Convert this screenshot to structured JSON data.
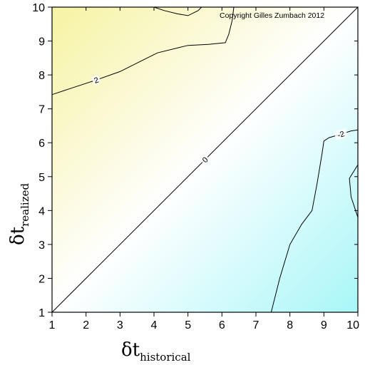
{
  "chart_data": {
    "type": "heatmap",
    "subtype": "contour",
    "copyright": "Copyright Gilles Zumbach 2012",
    "xlabel": {
      "symbol": "δt",
      "subscript": "historical"
    },
    "ylabel": {
      "symbol": "δt",
      "subscript": "realized"
    },
    "xlim": [
      1,
      10
    ],
    "ylim": [
      1,
      10
    ],
    "x_ticks": [
      "1",
      "2",
      "3",
      "4",
      "5",
      "6",
      "7",
      "8",
      "9",
      "10"
    ],
    "y_ticks": [
      "1",
      "2",
      "3",
      "4",
      "5",
      "6",
      "7",
      "8",
      "9",
      "10"
    ],
    "colors": {
      "positive": "#f6f3a2",
      "zero": "#ffffff",
      "negative": "#a8f6f8",
      "line": "#000000"
    },
    "contours": [
      {
        "level": "0",
        "label": "0",
        "label_at": [
          5.5,
          5.5
        ],
        "points": [
          [
            1,
            1
          ],
          [
            10,
            10
          ]
        ]
      },
      {
        "level": "2",
        "label": "2",
        "label_at": [
          2.3,
          7.85
        ],
        "points": [
          [
            1,
            7.42
          ],
          [
            1.6,
            7.62
          ],
          [
            2.3,
            7.85
          ],
          [
            3.0,
            8.1
          ],
          [
            3.7,
            8.45
          ],
          [
            4.1,
            8.65
          ],
          [
            4.7,
            8.8
          ],
          [
            5.0,
            8.87
          ],
          [
            5.6,
            8.9
          ],
          [
            6.1,
            8.95
          ],
          [
            6.2,
            9.2
          ],
          [
            6.3,
            9.6
          ],
          [
            6.35,
            10
          ]
        ]
      },
      {
        "level": "2",
        "label": "",
        "points": [
          [
            4.0,
            10
          ],
          [
            4.3,
            9.9
          ],
          [
            4.7,
            9.8
          ],
          [
            5.0,
            9.75
          ],
          [
            5.3,
            9.9
          ],
          [
            5.4,
            10
          ]
        ]
      },
      {
        "level": "-2",
        "label": "-2",
        "label_at": [
          9.5,
          6.25
        ],
        "points": [
          [
            7.45,
            1
          ],
          [
            7.7,
            2
          ],
          [
            8.0,
            3
          ],
          [
            8.35,
            3.6
          ],
          [
            8.65,
            4.0
          ],
          [
            8.8,
            4.8
          ],
          [
            8.95,
            5.7
          ],
          [
            9.0,
            6.05
          ],
          [
            9.15,
            6.15
          ],
          [
            9.5,
            6.25
          ],
          [
            9.8,
            6.35
          ],
          [
            10,
            6.38
          ]
        ]
      },
      {
        "level": "-2",
        "label": "",
        "points": [
          [
            10,
            5.35
          ],
          [
            9.75,
            4.95
          ],
          [
            9.8,
            4.4
          ],
          [
            9.95,
            3.95
          ],
          [
            10,
            3.8
          ]
        ]
      }
    ]
  }
}
